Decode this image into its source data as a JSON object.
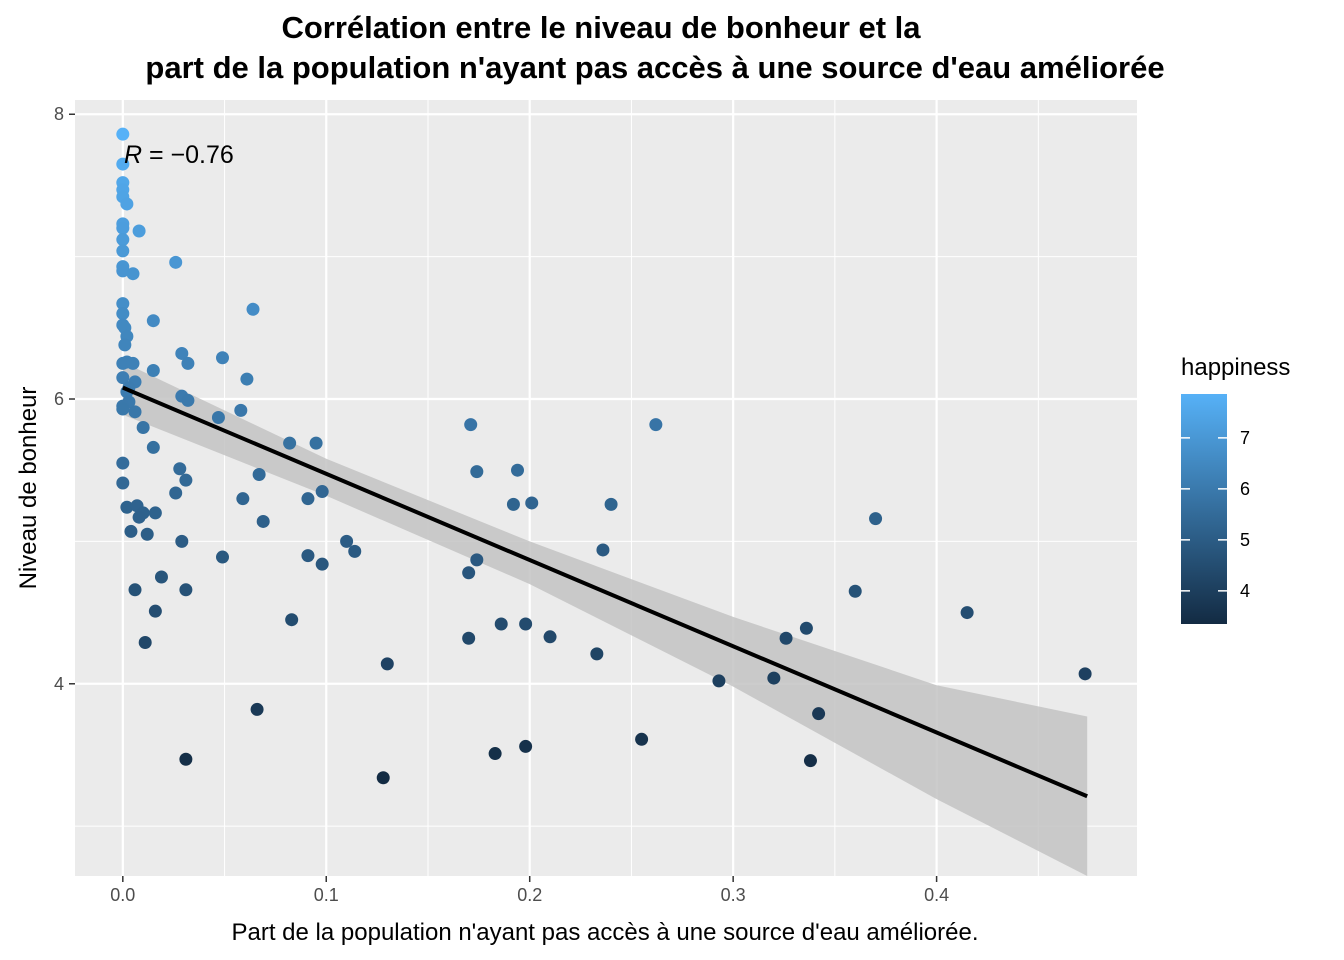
{
  "chart_data": {
    "type": "scatter",
    "title_lines": [
      "Corrélation entre le niveau de bonheur et la",
      "part de la population n'ayant pas accès à une source d'eau améliorée"
    ],
    "xlabel": "Part de la population n'ayant pas accès à une source d'eau améliorée.",
    "ylabel": "Niveau de bonheur",
    "xlim": [
      -0.0235,
      0.4985
    ],
    "ylim": [
      2.65,
      8.1
    ],
    "x_ticks": [
      0.0,
      0.1,
      0.2,
      0.3,
      0.4
    ],
    "x_tick_labels": [
      "0.0",
      "0.1",
      "0.2",
      "0.3",
      "0.4"
    ],
    "y_ticks": [
      4,
      6,
      8
    ],
    "y_tick_labels": [
      "4",
      "6",
      "8"
    ],
    "grid": true,
    "annotation": {
      "italic": "R",
      "rest": " = −0.76"
    },
    "legend": {
      "title": "happiness",
      "position": "right",
      "range": [
        3.35,
        7.86
      ],
      "ticks": [
        4,
        5,
        6,
        7
      ],
      "tick_labels": [
        "4",
        "5",
        "6",
        "7"
      ],
      "color_low": "#132B43",
      "color_high": "#56B1F7"
    },
    "colors": {
      "panel": "#ebebeb",
      "grid": "#ffffff",
      "fit_line": "#000000",
      "ribbon": "#c5c5c5"
    },
    "regression": {
      "x": [
        0.0,
        0.474
      ],
      "y": [
        6.08,
        3.21
      ],
      "ribbon": {
        "x": [
          0.0,
          0.1,
          0.2,
          0.3,
          0.4,
          0.474
        ],
        "upper": [
          6.26,
          5.58,
          5.0,
          4.47,
          3.99,
          3.77
        ],
        "lower": [
          5.89,
          5.32,
          4.7,
          3.98,
          3.19,
          2.65
        ]
      }
    },
    "points": [
      {
        "x": 0.0,
        "y": 7.86
      },
      {
        "x": 0.0,
        "y": 7.65
      },
      {
        "x": 0.0,
        "y": 7.52
      },
      {
        "x": 0.0,
        "y": 7.47
      },
      {
        "x": 0.0,
        "y": 7.42
      },
      {
        "x": 0.002,
        "y": 7.37
      },
      {
        "x": 0.0,
        "y": 7.23
      },
      {
        "x": 0.0,
        "y": 7.2
      },
      {
        "x": 0.0,
        "y": 7.12
      },
      {
        "x": 0.008,
        "y": 7.18
      },
      {
        "x": 0.0,
        "y": 7.04
      },
      {
        "x": 0.026,
        "y": 6.96
      },
      {
        "x": 0.0,
        "y": 6.93
      },
      {
        "x": 0.0,
        "y": 6.9
      },
      {
        "x": 0.005,
        "y": 6.88
      },
      {
        "x": 0.0,
        "y": 6.67
      },
      {
        "x": 0.064,
        "y": 6.63
      },
      {
        "x": 0.0,
        "y": 6.6
      },
      {
        "x": 0.015,
        "y": 6.55
      },
      {
        "x": 0.0,
        "y": 6.52
      },
      {
        "x": 0.001,
        "y": 6.5
      },
      {
        "x": 0.002,
        "y": 6.44
      },
      {
        "x": 0.001,
        "y": 6.38
      },
      {
        "x": 0.029,
        "y": 6.32
      },
      {
        "x": 0.049,
        "y": 6.29
      },
      {
        "x": 0.002,
        "y": 6.26
      },
      {
        "x": 0.0,
        "y": 6.25
      },
      {
        "x": 0.005,
        "y": 6.25
      },
      {
        "x": 0.032,
        "y": 6.25
      },
      {
        "x": 0.015,
        "y": 6.2
      },
      {
        "x": 0.0,
        "y": 6.15
      },
      {
        "x": 0.006,
        "y": 6.12
      },
      {
        "x": 0.061,
        "y": 6.14
      },
      {
        "x": 0.003,
        "y": 6.08
      },
      {
        "x": 0.002,
        "y": 6.05
      },
      {
        "x": 0.029,
        "y": 6.02
      },
      {
        "x": 0.032,
        "y": 5.99
      },
      {
        "x": 0.003,
        "y": 5.98
      },
      {
        "x": 0.0,
        "y": 5.95
      },
      {
        "x": 0.0,
        "y": 5.93
      },
      {
        "x": 0.006,
        "y": 5.91
      },
      {
        "x": 0.058,
        "y": 5.92
      },
      {
        "x": 0.047,
        "y": 5.87
      },
      {
        "x": 0.171,
        "y": 5.82
      },
      {
        "x": 0.262,
        "y": 5.82
      },
      {
        "x": 0.01,
        "y": 5.8
      },
      {
        "x": 0.082,
        "y": 5.69
      },
      {
        "x": 0.095,
        "y": 5.69
      },
      {
        "x": 0.015,
        "y": 5.66
      },
      {
        "x": 0.0,
        "y": 5.55
      },
      {
        "x": 0.028,
        "y": 5.51
      },
      {
        "x": 0.174,
        "y": 5.49
      },
      {
        "x": 0.194,
        "y": 5.5
      },
      {
        "x": 0.067,
        "y": 5.47
      },
      {
        "x": 0.031,
        "y": 5.43
      },
      {
        "x": 0.0,
        "y": 5.41
      },
      {
        "x": 0.098,
        "y": 5.35
      },
      {
        "x": 0.026,
        "y": 5.34
      },
      {
        "x": 0.059,
        "y": 5.3
      },
      {
        "x": 0.091,
        "y": 5.3
      },
      {
        "x": 0.201,
        "y": 5.27
      },
      {
        "x": 0.192,
        "y": 5.26
      },
      {
        "x": 0.24,
        "y": 5.26
      },
      {
        "x": 0.002,
        "y": 5.24
      },
      {
        "x": 0.007,
        "y": 5.25
      },
      {
        "x": 0.01,
        "y": 5.2
      },
      {
        "x": 0.016,
        "y": 5.2
      },
      {
        "x": 0.008,
        "y": 5.17
      },
      {
        "x": 0.37,
        "y": 5.16
      },
      {
        "x": 0.069,
        "y": 5.14
      },
      {
        "x": 0.004,
        "y": 5.07
      },
      {
        "x": 0.012,
        "y": 5.05
      },
      {
        "x": 0.029,
        "y": 5.0
      },
      {
        "x": 0.11,
        "y": 5.0
      },
      {
        "x": 0.236,
        "y": 4.94
      },
      {
        "x": 0.114,
        "y": 4.93
      },
      {
        "x": 0.091,
        "y": 4.9
      },
      {
        "x": 0.049,
        "y": 4.89
      },
      {
        "x": 0.174,
        "y": 4.87
      },
      {
        "x": 0.098,
        "y": 4.84
      },
      {
        "x": 0.17,
        "y": 4.78
      },
      {
        "x": 0.019,
        "y": 4.75
      },
      {
        "x": 0.006,
        "y": 4.66
      },
      {
        "x": 0.031,
        "y": 4.66
      },
      {
        "x": 0.36,
        "y": 4.65
      },
      {
        "x": 0.016,
        "y": 4.51
      },
      {
        "x": 0.415,
        "y": 4.5
      },
      {
        "x": 0.083,
        "y": 4.45
      },
      {
        "x": 0.186,
        "y": 4.42
      },
      {
        "x": 0.198,
        "y": 4.42
      },
      {
        "x": 0.336,
        "y": 4.39
      },
      {
        "x": 0.17,
        "y": 4.32
      },
      {
        "x": 0.21,
        "y": 4.33
      },
      {
        "x": 0.326,
        "y": 4.32
      },
      {
        "x": 0.011,
        "y": 4.29
      },
      {
        "x": 0.233,
        "y": 4.21
      },
      {
        "x": 0.13,
        "y": 4.14
      },
      {
        "x": 0.473,
        "y": 4.07
      },
      {
        "x": 0.32,
        "y": 4.04
      },
      {
        "x": 0.293,
        "y": 4.02
      },
      {
        "x": 0.066,
        "y": 3.82
      },
      {
        "x": 0.342,
        "y": 3.79
      },
      {
        "x": 0.255,
        "y": 3.61
      },
      {
        "x": 0.198,
        "y": 3.56
      },
      {
        "x": 0.183,
        "y": 3.51
      },
      {
        "x": 0.031,
        "y": 3.47
      },
      {
        "x": 0.338,
        "y": 3.46
      },
      {
        "x": 0.128,
        "y": 3.34
      }
    ]
  }
}
